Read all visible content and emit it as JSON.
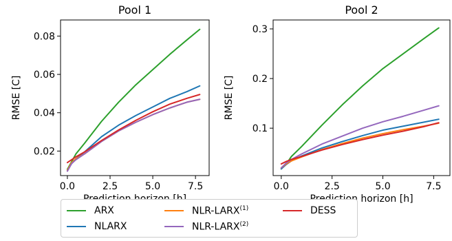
{
  "chart_data": [
    {
      "type": "line",
      "title": "Pool 1",
      "xlabel": "Prediction horizon [h]",
      "ylabel": "RMSE [C]",
      "xlim": [
        -0.4,
        8.3
      ],
      "ylim": [
        0.0072,
        0.0884
      ],
      "xticks": [
        0.0,
        2.5,
        5.0,
        7.5
      ],
      "xtick_labels": [
        "0.0",
        "2.5",
        "5.0",
        "7.5"
      ],
      "yticks": [
        0.02,
        0.04,
        0.06,
        0.08
      ],
      "ytick_labels": [
        "0.02",
        "0.04",
        "0.06",
        "0.08"
      ],
      "grid": false,
      "series": [
        {
          "name": "ARX",
          "color": "#2ca02c",
          "x": [
            0.0,
            0.25,
            0.5,
            1.0,
            2.0,
            3.0,
            4.0,
            5.0,
            6.0,
            7.0,
            7.75
          ],
          "y": [
            0.0105,
            0.0145,
            0.0185,
            0.024,
            0.0355,
            0.0455,
            0.0545,
            0.0625,
            0.0705,
            0.078,
            0.0835
          ]
        },
        {
          "name": "NLARX",
          "color": "#1f77b4",
          "x": [
            0.0,
            0.25,
            0.5,
            1.0,
            2.0,
            3.0,
            4.0,
            5.0,
            6.0,
            7.0,
            7.75
          ],
          "y": [
            0.01,
            0.0135,
            0.016,
            0.0195,
            0.0275,
            0.0335,
            0.0385,
            0.043,
            0.0475,
            0.051,
            0.054
          ]
        },
        {
          "name": "NLR-LARX(1)",
          "label_base": "NLR-LARX",
          "label_sup": "(1)",
          "color": "#ff7f0e",
          "x": [
            0.0,
            0.25,
            0.5,
            1.0,
            2.0,
            3.0,
            4.0,
            5.0,
            6.0,
            7.0,
            7.75
          ],
          "y": [
            0.01,
            0.014,
            0.016,
            0.0185,
            0.025,
            0.0305,
            0.035,
            0.039,
            0.0425,
            0.0455,
            0.047
          ]
        },
        {
          "name": "NLR-LARX(2)",
          "label_base": "NLR-LARX",
          "label_sup": "(2)",
          "color": "#9467bd",
          "x": [
            0.0,
            0.25,
            0.5,
            1.0,
            2.0,
            3.0,
            4.0,
            5.0,
            6.0,
            7.0,
            7.75
          ],
          "y": [
            0.0095,
            0.0135,
            0.0155,
            0.0185,
            0.025,
            0.0305,
            0.035,
            0.039,
            0.0425,
            0.0455,
            0.047
          ]
        },
        {
          "name": "DESS",
          "color": "#d62728",
          "x": [
            0.0,
            0.25,
            0.5,
            1.0,
            2.0,
            3.0,
            4.0,
            5.0,
            6.0,
            7.0,
            7.75
          ],
          "y": [
            0.014,
            0.0155,
            0.017,
            0.0195,
            0.0255,
            0.031,
            0.036,
            0.0405,
            0.0445,
            0.0475,
            0.0495
          ]
        }
      ]
    },
    {
      "type": "line",
      "title": "Pool 2",
      "xlabel": "Prediction horizon [h]",
      "ylabel": "RMSE [C]",
      "xlim": [
        -0.4,
        8.3
      ],
      "ylim": [
        0.0045,
        0.318
      ],
      "xticks": [
        0.0,
        2.5,
        5.0,
        7.5
      ],
      "xtick_labels": [
        "0.0",
        "2.5",
        "5.0",
        "7.5"
      ],
      "yticks": [
        0.1,
        0.2,
        0.3
      ],
      "ytick_labels": [
        "0.1",
        "0.2",
        "0.3"
      ],
      "grid": false,
      "series": [
        {
          "name": "ARX",
          "color": "#2ca02c",
          "x": [
            0.0,
            0.25,
            0.5,
            1.0,
            2.0,
            3.0,
            4.0,
            5.0,
            6.0,
            7.0,
            7.75
          ],
          "y": [
            0.018,
            0.028,
            0.043,
            0.063,
            0.106,
            0.147,
            0.185,
            0.22,
            0.25,
            0.28,
            0.302
          ]
        },
        {
          "name": "NLARX",
          "color": "#1f77b4",
          "x": [
            0.0,
            0.25,
            0.5,
            1.0,
            2.0,
            3.0,
            4.0,
            5.0,
            6.0,
            7.0,
            7.75
          ],
          "y": [
            0.018,
            0.027,
            0.034,
            0.044,
            0.06,
            0.073,
            0.085,
            0.096,
            0.104,
            0.112,
            0.118
          ]
        },
        {
          "name": "NLR-LARX(1)",
          "label_base": "NLR-LARX",
          "label_sup": "(1)",
          "color": "#ff7f0e",
          "x": [
            0.0,
            0.25,
            0.5,
            1.0,
            2.0,
            3.0,
            4.0,
            5.0,
            6.0,
            7.0,
            7.75
          ],
          "y": [
            0.02,
            0.028,
            0.034,
            0.042,
            0.057,
            0.069,
            0.08,
            0.089,
            0.097,
            0.104,
            0.11
          ]
        },
        {
          "name": "NLR-LARX(2)",
          "label_base": "NLR-LARX",
          "label_sup": "(2)",
          "color": "#9467bd",
          "x": [
            0.0,
            0.25,
            0.5,
            1.0,
            2.0,
            3.0,
            4.0,
            5.0,
            6.0,
            7.0,
            7.75
          ],
          "y": [
            0.02,
            0.03,
            0.037,
            0.048,
            0.068,
            0.084,
            0.1,
            0.113,
            0.124,
            0.136,
            0.145
          ]
        },
        {
          "name": "DESS",
          "color": "#d62728",
          "x": [
            0.0,
            0.25,
            0.5,
            1.0,
            2.0,
            3.0,
            4.0,
            5.0,
            6.0,
            7.0,
            7.75
          ],
          "y": [
            0.028,
            0.033,
            0.037,
            0.043,
            0.056,
            0.067,
            0.077,
            0.086,
            0.094,
            0.103,
            0.111
          ]
        }
      ]
    }
  ],
  "legend": {
    "placement": "bottom-center",
    "items": [
      {
        "name": "ARX",
        "color": "#2ca02c"
      },
      {
        "name": "NLARX",
        "color": "#1f77b4"
      },
      {
        "name": "NLR-LARX",
        "sup": "(1)",
        "color": "#ff7f0e"
      },
      {
        "name": "NLR-LARX",
        "sup": "(2)",
        "color": "#9467bd"
      },
      {
        "name": "DESS",
        "color": "#d62728"
      }
    ]
  }
}
